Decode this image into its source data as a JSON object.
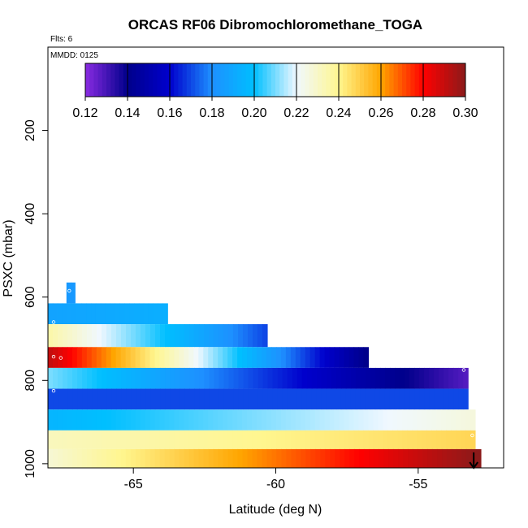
{
  "chart_data": {
    "type": "heatmap",
    "title": "ORCAS RF06 Dibromochloromethane_TOGA",
    "flights_note": "Flts: 6",
    "date_note": "MMDD: 0125",
    "xlabel": "Latitude (deg N)",
    "ylabel": "PSXC (mbar)",
    "xlim": [
      -68.0,
      -52.0
    ],
    "ylim": [
      1010,
      0
    ],
    "x_ticks": [
      -65,
      -60,
      -55
    ],
    "x_tick_labels": [
      "-65",
      "-60",
      "-55"
    ],
    "y_ticks": [
      200,
      400,
      600,
      800,
      1000
    ],
    "y_tick_labels": [
      "200",
      "400",
      "600",
      "800",
      "1000"
    ],
    "colorbar": {
      "min": 0.12,
      "max": 0.3,
      "ticks": [
        0.12,
        0.14,
        0.16,
        0.18,
        0.2,
        0.22,
        0.24,
        0.26,
        0.28,
        0.3
      ],
      "tick_labels": [
        "0.12",
        "0.14",
        "0.16",
        "0.18",
        "0.20",
        "0.22",
        "0.24",
        "0.26",
        "0.28",
        "0.30"
      ],
      "stops": [
        "#8a2be2",
        "#00008b",
        "#0000cd",
        "#1e90ff",
        "#00bfff",
        "#f0f8ff",
        "#fff68f",
        "#ffa500",
        "#ff0000",
        "#8b1a1a"
      ]
    },
    "bands": [
      {
        "p_top": 565,
        "p_bot": 615,
        "lat_start": -67.35,
        "lat_end": -67.05,
        "v_start": 0.184,
        "v_end": 0.184
      },
      {
        "p_top": 615,
        "p_bot": 665,
        "lat_start": -68.0,
        "lat_end": -63.8,
        "v_start": 0.188,
        "v_end": 0.193
      },
      {
        "p_top": 665,
        "p_bot": 720,
        "lat_start": -68.0,
        "lat_end": -60.3,
        "v_start": 0.235,
        "v_end": 0.17
      },
      {
        "p_top": 720,
        "p_bot": 770,
        "lat_start": -68.0,
        "lat_end": -56.75,
        "v_start": 0.29,
        "v_end": 0.14
      },
      {
        "p_top": 770,
        "p_bot": 820,
        "lat_start": -68.0,
        "lat_end": -53.25,
        "v_start": 0.21,
        "v_end": 0.128
      },
      {
        "p_top": 820,
        "p_bot": 870,
        "lat_start": -68.0,
        "lat_end": -53.25,
        "v_start": 0.17,
        "v_end": 0.17
      },
      {
        "p_top": 870,
        "p_bot": 920,
        "lat_start": -68.0,
        "lat_end": -53.0,
        "v_start": 0.196,
        "v_end": 0.226
      },
      {
        "p_top": 920,
        "p_bot": 965,
        "lat_start": -68.0,
        "lat_end": -53.0,
        "v_start": 0.232,
        "v_end": 0.248
      },
      {
        "p_top": 965,
        "p_bot": 1010,
        "lat_start": -68.0,
        "lat_end": -52.8,
        "v_start": 0.228,
        "v_end": 0.3
      }
    ],
    "sample_points": [
      {
        "lat": -67.25,
        "p": 585
      },
      {
        "lat": -67.8,
        "p": 660
      },
      {
        "lat": -67.8,
        "p": 743
      },
      {
        "lat": -67.55,
        "p": 746
      },
      {
        "lat": -53.4,
        "p": 775
      },
      {
        "lat": -67.8,
        "p": 825
      },
      {
        "lat": -53.1,
        "p": 932
      }
    ],
    "arrow": {
      "lat": -53.05,
      "p_start": 965,
      "p_end": 1010
    }
  }
}
